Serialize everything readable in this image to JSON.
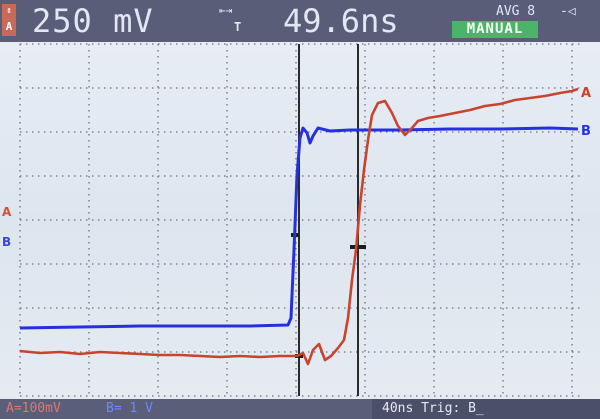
{
  "status_bar": {
    "channel_badge": "A",
    "amplitude": "250 mV",
    "timebase_icon": "timebase-icon",
    "timebase_sub": "T",
    "time": "49.6ns",
    "avg": "AVG 8",
    "mode": "MANUAL"
  },
  "bottom_bar": {
    "a_scale": "A=100mV",
    "b_scale": "B= 1 V",
    "trigger": "40ns Trig: B̲"
  },
  "traces": {
    "a_label": "A",
    "b_label": "B",
    "a_color": "#c8442e",
    "b_color": "#2530e0"
  },
  "side_labels": {
    "a": "A",
    "b": "B"
  }
}
